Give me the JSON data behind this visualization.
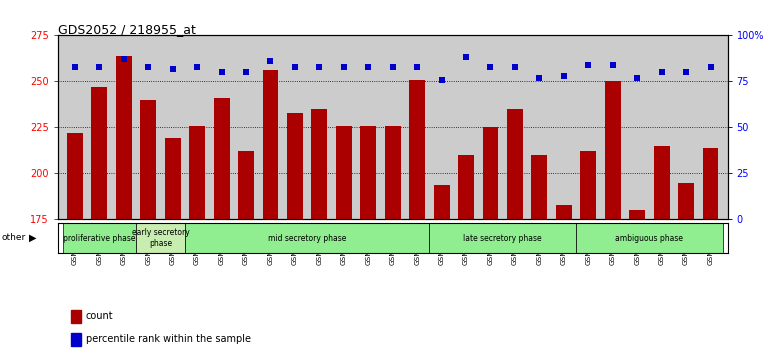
{
  "title": "GDS2052 / 218955_at",
  "samples": [
    "GSM109814",
    "GSM109815",
    "GSM109816",
    "GSM109817",
    "GSM109820",
    "GSM109821",
    "GSM109822",
    "GSM109824",
    "GSM109825",
    "GSM109826",
    "GSM109827",
    "GSM109828",
    "GSM109829",
    "GSM109830",
    "GSM109831",
    "GSM109834",
    "GSM109835",
    "GSM109836",
    "GSM109837",
    "GSM109838",
    "GSM109839",
    "GSM109818",
    "GSM109819",
    "GSM109823",
    "GSM109832",
    "GSM109833",
    "GSM109840"
  ],
  "counts": [
    222,
    247,
    264,
    240,
    219,
    226,
    241,
    212,
    256,
    233,
    235,
    226,
    226,
    226,
    251,
    194,
    210,
    225,
    235,
    210,
    183,
    212,
    250,
    180,
    215,
    195,
    214
  ],
  "percentiles": [
    83,
    83,
    87,
    83,
    82,
    83,
    80,
    80,
    86,
    83,
    83,
    83,
    83,
    83,
    83,
    76,
    88,
    83,
    83,
    77,
    78,
    84,
    84,
    77,
    80,
    80,
    83
  ],
  "phases": [
    {
      "label": "proliferative phase",
      "start": 0,
      "end": 3,
      "color": "#90EE90"
    },
    {
      "label": "early secretory\nphase",
      "start": 3,
      "end": 5,
      "color": "#c8edb0"
    },
    {
      "label": "mid secretory phase",
      "start": 5,
      "end": 15,
      "color": "#90EE90"
    },
    {
      "label": "late secretory phase",
      "start": 15,
      "end": 21,
      "color": "#90EE90"
    },
    {
      "label": "ambiguous phase",
      "start": 21,
      "end": 27,
      "color": "#90EE90"
    }
  ],
  "ylim_left": [
    175,
    275
  ],
  "ylim_right": [
    0,
    100
  ],
  "bar_color": "#AA0000",
  "dot_color": "#0000CC",
  "background_color": "#cccccc",
  "title_fontsize": 9,
  "tick_fontsize": 6
}
